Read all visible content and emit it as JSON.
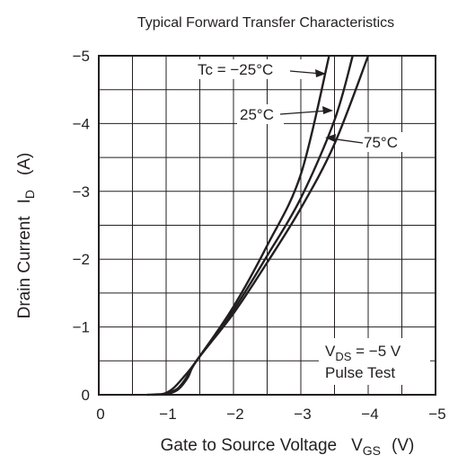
{
  "chart_data": {
    "type": "line",
    "title": "Typical Forward Transfer Characteristics",
    "xlabel": {
      "main": "Gate to Source Voltage",
      "sym": "V",
      "sub": "GS",
      "unit": "(V)"
    },
    "ylabel": {
      "main": "Drain Current",
      "sym": "I",
      "sub": "D",
      "unit": "(A)"
    },
    "xlim": [
      0,
      -5
    ],
    "ylim": [
      0,
      -5
    ],
    "xticks": [
      0,
      -1,
      -2,
      -3,
      -4,
      -5
    ],
    "xtick_labels": [
      "0",
      "−1",
      "−2",
      "−3",
      "−4",
      "−5"
    ],
    "yticks": [
      0,
      -1,
      -2,
      -3,
      -4,
      -5
    ],
    "ytick_labels": [
      "0",
      "−1",
      "−2",
      "−3",
      "−4",
      "−5"
    ],
    "grid": true,
    "minor_subdivisions": 2,
    "series": [
      {
        "name": "Tc = −25°C",
        "points": [
          [
            -0.72,
            0
          ],
          [
            -0.85,
            -0.005
          ],
          [
            -0.98,
            -0.02
          ],
          [
            -1.1,
            -0.09
          ],
          [
            -1.25,
            -0.25
          ],
          [
            -1.45,
            -0.5
          ],
          [
            -2.0,
            -1.3
          ],
          [
            -2.5,
            -2.2
          ],
          [
            -3.0,
            -3.25
          ],
          [
            -3.42,
            -5.0
          ]
        ]
      },
      {
        "name": "25°C",
        "points": [
          [
            -0.8,
            0
          ],
          [
            -0.95,
            -0.005
          ],
          [
            -1.05,
            -0.03
          ],
          [
            -1.18,
            -0.1
          ],
          [
            -1.3,
            -0.25
          ],
          [
            -1.45,
            -0.5
          ],
          [
            -2.0,
            -1.25
          ],
          [
            -2.5,
            -2.05
          ],
          [
            -3.0,
            -2.9
          ],
          [
            -3.5,
            -4.05
          ],
          [
            -3.77,
            -5.0
          ]
        ]
      },
      {
        "name": "75°C",
        "points": [
          [
            -0.92,
            0
          ],
          [
            -1.05,
            -0.02
          ],
          [
            -1.18,
            -0.08
          ],
          [
            -1.32,
            -0.25
          ],
          [
            -1.45,
            -0.5
          ],
          [
            -2.0,
            -1.2
          ],
          [
            -2.5,
            -1.95
          ],
          [
            -3.0,
            -2.75
          ],
          [
            -3.5,
            -3.7
          ],
          [
            -4.0,
            -5.0
          ]
        ]
      }
    ],
    "annotations": {
      "label_m25": "Tc = −25°C",
      "label_25": "25°C",
      "label_75": "75°C",
      "vds_sym": "V",
      "vds_sub": "DS",
      "vds_rest": " = −5 V",
      "pulse": "Pulse Test"
    }
  }
}
